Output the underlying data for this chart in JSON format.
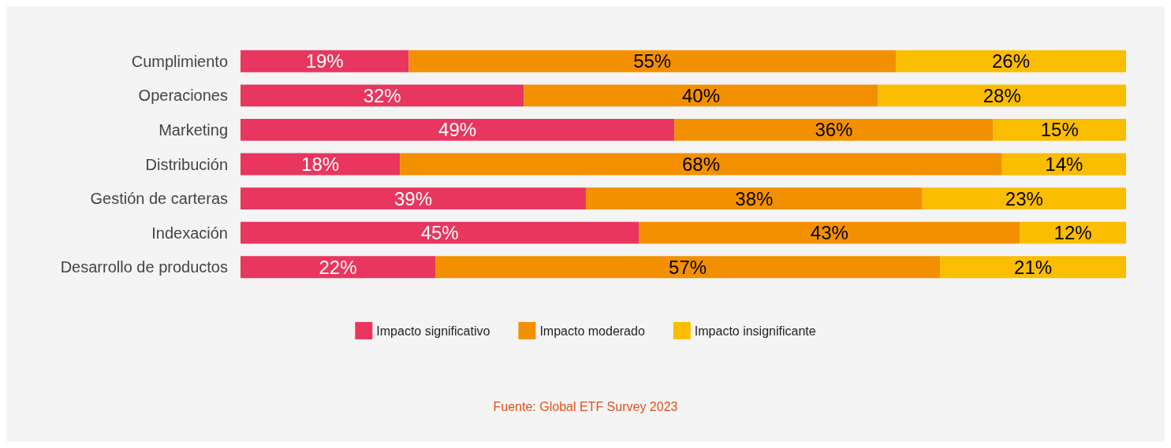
{
  "chart_data": {
    "type": "bar",
    "orientation": "horizontal",
    "stacked": true,
    "categories": [
      "Cumplimiento",
      "Operaciones",
      "Marketing",
      "Distribución",
      "Gestión de carteras",
      "Indexación",
      "Desarrollo de productos"
    ],
    "series": [
      {
        "name": "Impacto significativo",
        "color": "#e8365e",
        "values": [
          19,
          32,
          49,
          18,
          39,
          45,
          22
        ],
        "value_labels": [
          "19%",
          "32%",
          "49%",
          "18%",
          "39%",
          "45%",
          "22%"
        ]
      },
      {
        "name": "Impacto moderado",
        "color": "#f39000",
        "values": [
          55,
          40,
          36,
          68,
          38,
          43,
          57
        ],
        "value_labels": [
          "55%",
          "40%",
          "36%",
          "68%",
          "38%",
          "43%",
          "57%"
        ]
      },
      {
        "name": "Impacto insignificante",
        "color": "#fbbd00",
        "values": [
          26,
          28,
          15,
          14,
          23,
          12,
          21
        ],
        "value_labels": [
          "26%",
          "28%",
          "15%",
          "14%",
          "23%",
          "12%",
          "21%"
        ]
      }
    ],
    "legend": "bottom",
    "annotations": [
      "Fuente: Global ETF Survey 2023"
    ]
  }
}
